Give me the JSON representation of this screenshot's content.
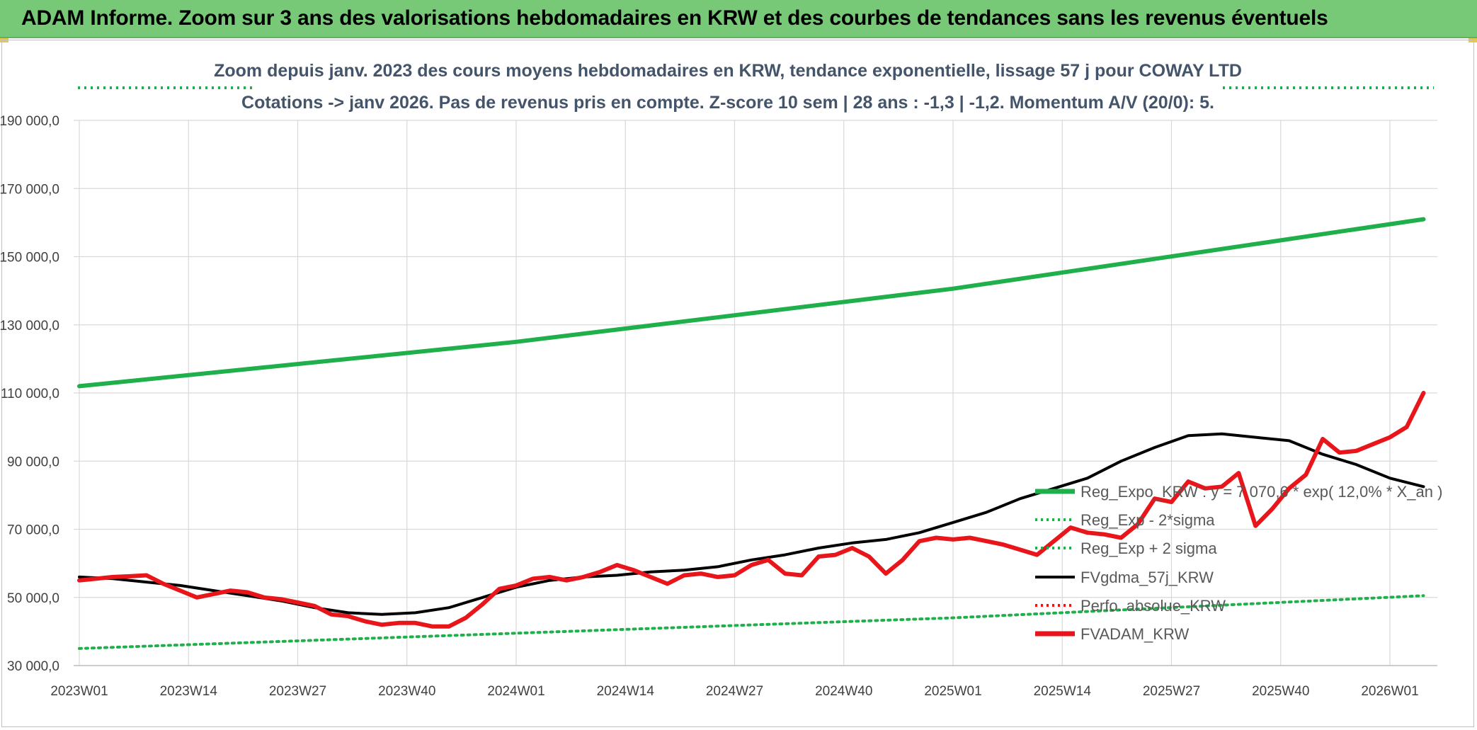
{
  "banner": {
    "title": "ADAM Informe. Zoom sur 3 ans des valorisations hebdomadaires en KRW et des courbes de tendances sans les revenus éventuels"
  },
  "colors": {
    "banner_bg": "#77c977",
    "reg_expo": "#1fb04b",
    "band": "#1fb04b",
    "fvgdma": "#000000",
    "perfo": "#e8161b",
    "fvadam": "#e8161b",
    "grid": "#d9d9d9",
    "axis_text": "#404040"
  },
  "chart_data": {
    "type": "line",
    "title_lines": [
      "Zoom depuis janv. 2023 des cours moyens hebdomadaires en KRW, tendance exponentielle, lissage 57 j pour COWAY LTD",
      "Cotations -> janv 2026. Pas de revenus pris en compte. Z-score 10 sem | 28 ans : -1,3 | -1,2. Momentum A/V (20/0): 5."
    ],
    "xlabel": "",
    "ylabel": "",
    "x_ticks": [
      "2023W01",
      "2023W14",
      "2023W27",
      "2023W40",
      "2024W01",
      "2024W14",
      "2024W27",
      "2024W40",
      "2025W01",
      "2025W14",
      "2025W27",
      "2025W40",
      "2026W01"
    ],
    "x_tick_index": [
      0,
      13,
      26,
      39,
      52,
      65,
      78,
      91,
      104,
      117,
      130,
      143,
      156
    ],
    "x_range": [
      0,
      160
    ],
    "ylim": [
      30000,
      190000
    ],
    "y_ticks": [
      30000,
      50000,
      70000,
      90000,
      110000,
      130000,
      150000,
      170000,
      190000
    ],
    "y_tick_labels": [
      "30 000,0",
      "50 000,0",
      "70 000,0",
      "90 000,0",
      "110 000,0",
      "130 000,0",
      "150 000,0",
      "170 000,0",
      "190 000,0"
    ],
    "grid": true,
    "legend_position": "right",
    "series": [
      {
        "name": "Reg_Expo_KRW : y = 7 070,6 * exp( 12,0% *  X_an )",
        "style": "solid-thick",
        "color": "#1fb04b",
        "points": [
          [
            0,
            112000
          ],
          [
            52,
            125000
          ],
          [
            104,
            140600
          ],
          [
            160,
            161000
          ]
        ]
      },
      {
        "name": "Reg_Exp - 2*sigma",
        "style": "dotted",
        "color": "#1fb04b",
        "points": [
          [
            0,
            35000
          ],
          [
            52,
            39500
          ],
          [
            104,
            44000
          ],
          [
            160,
            50500
          ]
        ]
      },
      {
        "name": "Reg_Exp + 2 sigma",
        "style": "dotted",
        "color": "#1fb04b",
        "points": [
          [
            0,
            200000
          ],
          [
            160,
            200000
          ]
        ]
      },
      {
        "name": "FVgdma_57j_KRW",
        "style": "solid",
        "color": "#000000",
        "points": [
          [
            0,
            56000
          ],
          [
            4,
            55500
          ],
          [
            8,
            54500
          ],
          [
            12,
            53500
          ],
          [
            16,
            52000
          ],
          [
            20,
            50500
          ],
          [
            24,
            49000
          ],
          [
            28,
            47000
          ],
          [
            32,
            45500
          ],
          [
            36,
            45000
          ],
          [
            40,
            45500
          ],
          [
            44,
            47000
          ],
          [
            48,
            50000
          ],
          [
            52,
            53000
          ],
          [
            56,
            55000
          ],
          [
            60,
            56000
          ],
          [
            64,
            56500
          ],
          [
            68,
            57500
          ],
          [
            72,
            58000
          ],
          [
            76,
            59000
          ],
          [
            80,
            61000
          ],
          [
            84,
            62500
          ],
          [
            88,
            64500
          ],
          [
            92,
            66000
          ],
          [
            96,
            67000
          ],
          [
            100,
            69000
          ],
          [
            104,
            72000
          ],
          [
            108,
            75000
          ],
          [
            112,
            79000
          ],
          [
            116,
            82000
          ],
          [
            120,
            85000
          ],
          [
            124,
            90000
          ],
          [
            128,
            94000
          ],
          [
            132,
            97500
          ],
          [
            136,
            98000
          ],
          [
            140,
            97000
          ],
          [
            144,
            96000
          ],
          [
            148,
            92000
          ],
          [
            152,
            89000
          ],
          [
            156,
            85000
          ],
          [
            160,
            82500
          ]
        ]
      },
      {
        "name": "Perfo. absolue_KRW",
        "style": "dotted",
        "color": "#e8161b",
        "points": []
      },
      {
        "name": "FVADAM_KRW",
        "style": "solid-thick",
        "color": "#e8161b",
        "points": [
          [
            0,
            55000
          ],
          [
            2,
            55500
          ],
          [
            4,
            56000
          ],
          [
            6,
            56200
          ],
          [
            8,
            56500
          ],
          [
            10,
            54000
          ],
          [
            12,
            52000
          ],
          [
            14,
            50000
          ],
          [
            16,
            51000
          ],
          [
            18,
            52000
          ],
          [
            20,
            51500
          ],
          [
            22,
            50000
          ],
          [
            24,
            49500
          ],
          [
            26,
            48500
          ],
          [
            28,
            47500
          ],
          [
            30,
            45000
          ],
          [
            32,
            44500
          ],
          [
            34,
            43000
          ],
          [
            36,
            42000
          ],
          [
            38,
            42500
          ],
          [
            40,
            42500
          ],
          [
            42,
            41500
          ],
          [
            44,
            41500
          ],
          [
            46,
            44000
          ],
          [
            48,
            48000
          ],
          [
            50,
            52500
          ],
          [
            52,
            53500
          ],
          [
            54,
            55500
          ],
          [
            56,
            56000
          ],
          [
            58,
            55000
          ],
          [
            60,
            56000
          ],
          [
            62,
            57500
          ],
          [
            64,
            59500
          ],
          [
            66,
            58000
          ],
          [
            68,
            56000
          ],
          [
            70,
            54000
          ],
          [
            72,
            56500
          ],
          [
            74,
            57000
          ],
          [
            76,
            56000
          ],
          [
            78,
            56500
          ],
          [
            80,
            59500
          ],
          [
            82,
            61000
          ],
          [
            84,
            57000
          ],
          [
            86,
            56500
          ],
          [
            88,
            62000
          ],
          [
            90,
            62500
          ],
          [
            92,
            64500
          ],
          [
            94,
            62000
          ],
          [
            96,
            57000
          ],
          [
            98,
            61000
          ],
          [
            100,
            66500
          ],
          [
            102,
            67500
          ],
          [
            104,
            67000
          ],
          [
            106,
            67500
          ],
          [
            108,
            66500
          ],
          [
            110,
            65500
          ],
          [
            112,
            64000
          ],
          [
            114,
            62500
          ],
          [
            116,
            66500
          ],
          [
            118,
            70500
          ],
          [
            120,
            69000
          ],
          [
            122,
            68500
          ],
          [
            124,
            67500
          ],
          [
            126,
            71500
          ],
          [
            128,
            79000
          ],
          [
            130,
            78000
          ],
          [
            132,
            84000
          ],
          [
            134,
            82000
          ],
          [
            136,
            82500
          ],
          [
            138,
            86500
          ],
          [
            140,
            71000
          ],
          [
            142,
            76000
          ],
          [
            144,
            82000
          ],
          [
            146,
            86000
          ],
          [
            148,
            96500
          ],
          [
            150,
            92500
          ],
          [
            152,
            93000
          ],
          [
            154,
            95000
          ],
          [
            156,
            97000
          ],
          [
            158,
            100000
          ],
          [
            160,
            110000
          ]
        ]
      }
    ]
  }
}
